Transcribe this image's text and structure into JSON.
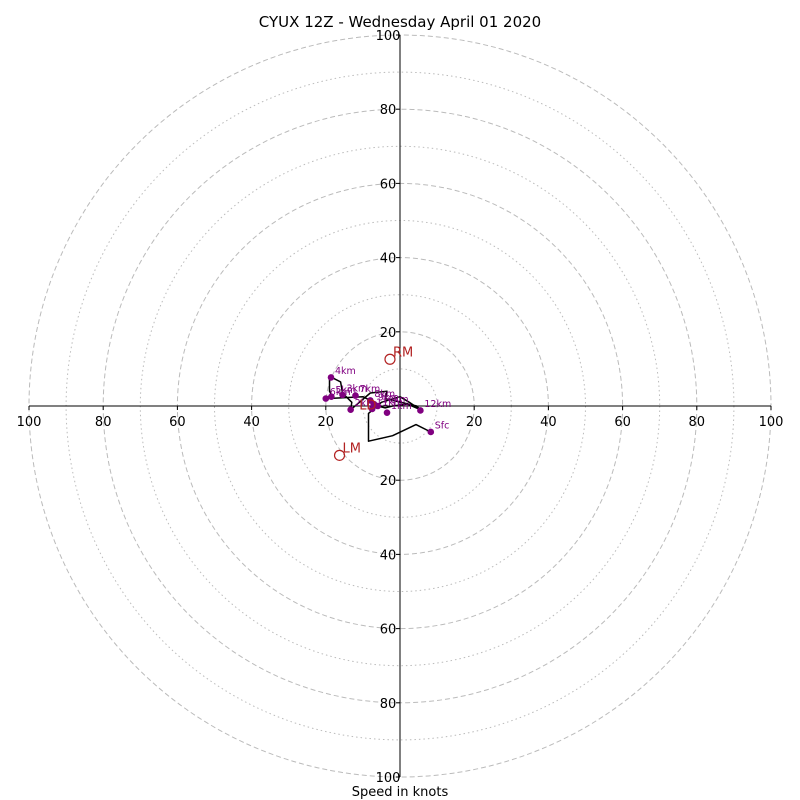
{
  "chart_data": {
    "type": "scatter",
    "title": "CYUX 12Z - Wednesday April 01 2020",
    "xlabel": "Speed in knots",
    "ylabel": "",
    "xlim": [
      -100,
      100
    ],
    "ylim": [
      -100,
      100
    ],
    "rings_major": [
      20,
      40,
      60,
      80,
      100
    ],
    "rings_minor": [
      10,
      30,
      50,
      70,
      90
    ],
    "tick_labels": [
      "20",
      "40",
      "60",
      "80",
      "100"
    ],
    "grid": true,
    "colors": {
      "axes": "#000000",
      "ring": "#bbbbbb",
      "hodograph_line": "#000000",
      "height_points": "#800080",
      "storm_motion": "#b22222"
    },
    "hodograph": [
      {
        "u": 8.3,
        "v": -7.0
      },
      {
        "u": 4.3,
        "v": -5.0
      },
      {
        "u": -2.0,
        "v": -8.0
      },
      {
        "u": -8.5,
        "v": -9.5
      },
      {
        "u": -8.5,
        "v": -2.0
      },
      {
        "u": -5.0,
        "v": 1.0
      },
      {
        "u": 0.0,
        "v": 2.5
      },
      {
        "u": 2.5,
        "v": 1.0
      },
      {
        "u": 5.5,
        "v": -1.0
      },
      {
        "u": 4.5,
        "v": 0.0
      },
      {
        "u": -4.0,
        "v": 2.0
      },
      {
        "u": -3.5,
        "v": 4.0
      },
      {
        "u": -8.0,
        "v": 3.5
      },
      {
        "u": -13.3,
        "v": -1.0
      },
      {
        "u": -13.0,
        "v": 1.0
      },
      {
        "u": -15.5,
        "v": 3.5
      },
      {
        "u": -16.0,
        "v": 6.5
      },
      {
        "u": -19.0,
        "v": 8.0
      },
      {
        "u": -19.0,
        "v": 4.0
      },
      {
        "u": -18.5,
        "v": 3.0
      },
      {
        "u": -20.0,
        "v": 2.0
      },
      {
        "u": -10.0,
        "v": 2.5
      },
      {
        "u": -8.0,
        "v": 1.5
      },
      {
        "u": -7.0,
        "v": 0.5
      },
      {
        "u": -6.0,
        "v": 0.0
      },
      {
        "u": -4.0,
        "v": -0.5
      },
      {
        "u": -2.0,
        "v": 0.0
      },
      {
        "u": 2.0,
        "v": 0.5
      },
      {
        "u": 5.5,
        "v": -1.0
      }
    ],
    "height_points": [
      {
        "label": "Sfc",
        "u": 8.3,
        "v": -7.0
      },
      {
        "label": "1km",
        "u": -3.5,
        "v": -1.8
      },
      {
        "label": "2km",
        "u": -13.3,
        "v": -1.0
      },
      {
        "label": "3km",
        "u": -15.5,
        "v": 3.0
      },
      {
        "label": "4km",
        "u": -18.6,
        "v": 7.7
      },
      {
        "label": "5km",
        "u": -18.5,
        "v": 2.5
      },
      {
        "label": "6km",
        "u": -20.0,
        "v": 2.0
      },
      {
        "label": "7km",
        "u": -12.0,
        "v": 2.8
      },
      {
        "label": "8km",
        "u": -8.0,
        "v": 1.5
      },
      {
        "label": "9km",
        "u": -7.0,
        "v": 0.5
      },
      {
        "label": "10km",
        "u": -6.0,
        "v": 0.0
      },
      {
        "label": "11km",
        "u": -7.5,
        "v": -0.8
      },
      {
        "label": "12km",
        "u": 5.5,
        "v": -1.2
      }
    ],
    "storm_motion": [
      {
        "label": "RM",
        "u": -2.7,
        "v": 12.6
      },
      {
        "label": "LM",
        "u": -16.3,
        "v": -13.3
      }
    ],
    "extra_labels": [
      {
        "label": "LD",
        "u": -11.0,
        "v": -1.0
      }
    ]
  }
}
